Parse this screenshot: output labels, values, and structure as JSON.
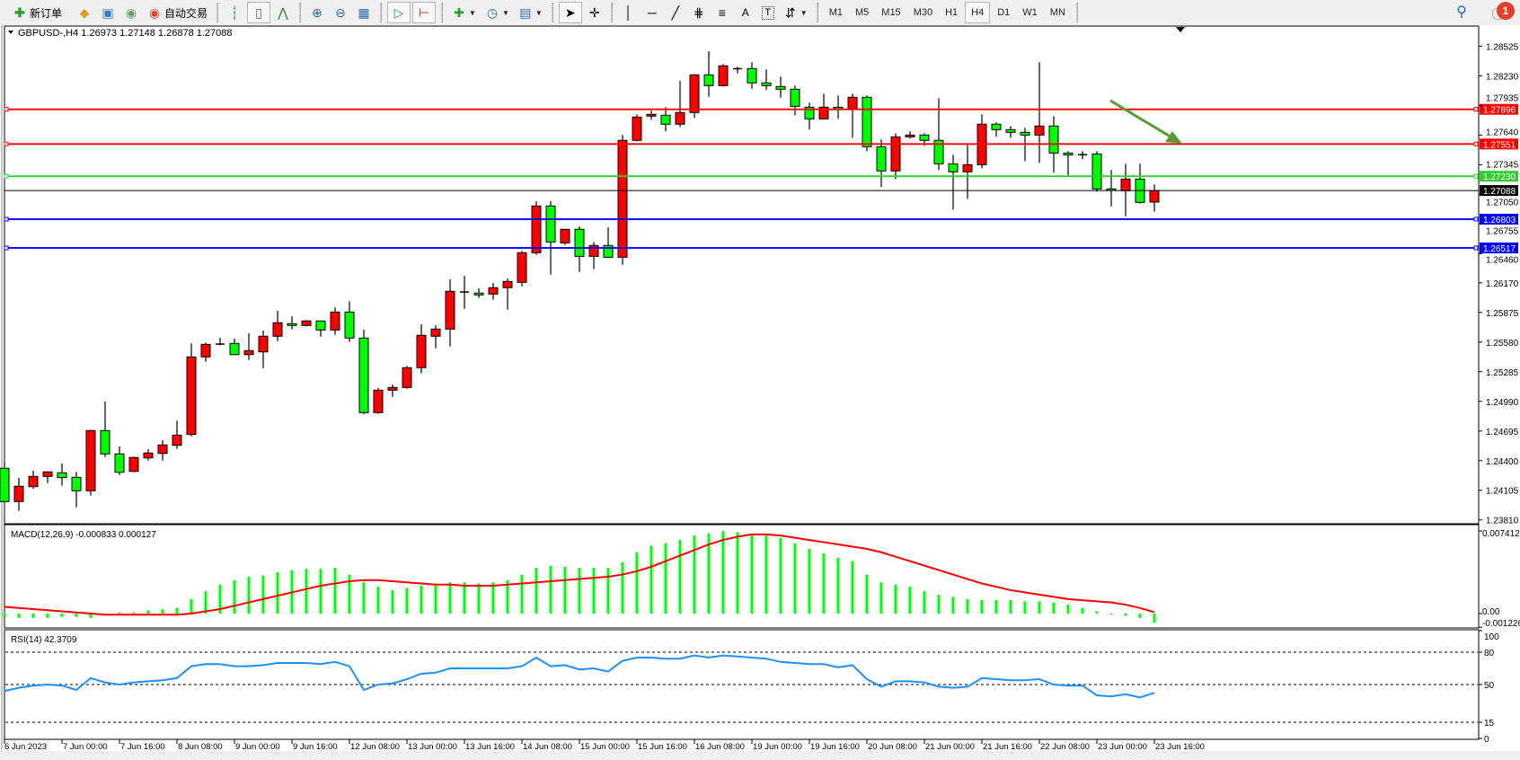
{
  "toolbar": {
    "new_order_label": "新订单",
    "auto_trading_label": "自动交易",
    "timeframes": [
      {
        "label": "M1",
        "active": false
      },
      {
        "label": "M5",
        "active": false
      },
      {
        "label": "M15",
        "active": false
      },
      {
        "label": "M30",
        "active": false
      },
      {
        "label": "H1",
        "active": false
      },
      {
        "label": "H4",
        "active": true
      },
      {
        "label": "D1",
        "active": false
      },
      {
        "label": "W1",
        "active": false
      },
      {
        "label": "MN",
        "active": false
      }
    ],
    "text_tool_label": "A",
    "notification_count": "1"
  },
  "chart": {
    "header": "GBPUSD-,H4  1.26973 1.27148 1.26878 1.27088",
    "colors": {
      "bull": "#ff0000",
      "bear": "#00ff00",
      "wick": "#000000",
      "arrow": "#5a9a32"
    },
    "price_ticks": [
      "1.28525",
      "1.28230",
      "1.27935",
      "1.27640",
      "1.27345",
      "1.27050",
      "1.26755",
      "1.26460",
      "1.26170",
      "1.25875",
      "1.25580",
      "1.25285",
      "1.24990",
      "1.24695",
      "1.24400",
      "1.24105",
      "1.23810"
    ],
    "levels": [
      {
        "price": 1.27896,
        "label": "1.27896",
        "color": "#ff0000"
      },
      {
        "price": 1.27551,
        "label": "1.27551",
        "color": "#ff0000"
      },
      {
        "price": 1.2723,
        "label": "1.27230",
        "color": "#32cd32"
      },
      {
        "price": 1.27088,
        "label": "1.27088",
        "color": "#000000",
        "bid": true
      },
      {
        "price": 1.26803,
        "label": "1.26803",
        "color": "#0000ff"
      },
      {
        "price": 1.26517,
        "label": "1.26517",
        "color": "#0000ff"
      }
    ],
    "time_labels": [
      "6 Jun 2023",
      "7 Jun 00:00",
      "7 Jun 16:00",
      "8 Jun 08:00",
      "9 Jun 00:00",
      "9 Jun 16:00",
      "12 Jun 08:00",
      "13 Jun 00:00",
      "13 Jun 16:00",
      "14 Jun 08:00",
      "15 Jun 00:00",
      "15 Jun 16:00",
      "16 Jun 08:00",
      "19 Jun 00:00",
      "19 Jun 16:00",
      "20 Jun 08:00",
      "21 Jun 00:00",
      "21 Jun 16:00",
      "22 Jun 08:00",
      "23 Jun 00:00",
      "23 Jun 16:00"
    ],
    "ohlc": [
      [
        1.24324,
        1.2438,
        1.23978,
        1.23993
      ],
      [
        1.23993,
        1.24228,
        1.239,
        1.24145
      ],
      [
        1.24141,
        1.24299,
        1.24118,
        1.24243
      ],
      [
        1.24243,
        1.24295,
        1.24177,
        1.24288
      ],
      [
        1.24279,
        1.24371,
        1.2415,
        1.24231
      ],
      [
        1.24234,
        1.24288,
        1.23936,
        1.241
      ],
      [
        1.241,
        1.24708,
        1.24052,
        1.24699
      ],
      [
        1.24699,
        1.24988,
        1.24436,
        1.24467
      ],
      [
        1.24467,
        1.24541,
        1.24257,
        1.24284
      ],
      [
        1.24293,
        1.2444,
        1.24284,
        1.24431
      ],
      [
        1.24427,
        1.24514,
        1.244,
        1.24476
      ],
      [
        1.24472,
        1.24603,
        1.244,
        1.24556
      ],
      [
        1.24552,
        1.24797,
        1.24517,
        1.24654
      ],
      [
        1.2466,
        1.25566,
        1.24642,
        1.25432
      ],
      [
        1.25432,
        1.25575,
        1.25384,
        1.25557
      ],
      [
        1.25556,
        1.25623,
        1.25547,
        1.2556
      ],
      [
        1.25566,
        1.25614,
        1.2545,
        1.25455
      ],
      [
        1.25455,
        1.25667,
        1.25402,
        1.25495
      ],
      [
        1.25482,
        1.25694,
        1.25321,
        1.25638
      ],
      [
        1.25638,
        1.25891,
        1.25589,
        1.25772
      ],
      [
        1.25763,
        1.25837,
        1.25706,
        1.25745
      ],
      [
        1.25745,
        1.25799,
        1.25736,
        1.2579
      ],
      [
        1.2579,
        1.25795,
        1.25634,
        1.257
      ],
      [
        1.257,
        1.25924,
        1.25652,
        1.25879
      ],
      [
        1.25879,
        1.25986,
        1.25581,
        1.2562
      ],
      [
        1.2562,
        1.25703,
        1.2486,
        1.24878
      ],
      [
        1.24878,
        1.25125,
        1.24865,
        1.25101
      ],
      [
        1.25101,
        1.25158,
        1.25035,
        1.25128
      ],
      [
        1.25128,
        1.25343,
        1.25116,
        1.25325
      ],
      [
        1.25325,
        1.25757,
        1.25268,
        1.25647
      ],
      [
        1.25638,
        1.25748,
        1.25518,
        1.25709
      ],
      [
        1.25709,
        1.26204,
        1.25536,
        1.26085
      ],
      [
        1.26078,
        1.26239,
        1.25911,
        1.26072
      ],
      [
        1.26067,
        1.26114,
        1.26019,
        1.26049
      ],
      [
        1.26058,
        1.26168,
        1.26001,
        1.26121
      ],
      [
        1.26121,
        1.26213,
        1.25902,
        1.26183
      ],
      [
        1.26174,
        1.26487,
        1.26135,
        1.26469
      ],
      [
        1.26469,
        1.26981,
        1.26448,
        1.26934
      ],
      [
        1.26934,
        1.26981,
        1.26251,
        1.26576
      ],
      [
        1.26567,
        1.26705,
        1.26546,
        1.26702
      ],
      [
        1.26702,
        1.26731,
        1.26278,
        1.26433
      ],
      [
        1.26433,
        1.26576,
        1.26305,
        1.26541
      ],
      [
        1.26541,
        1.26722,
        1.2642,
        1.26424
      ],
      [
        1.26424,
        1.2764,
        1.26349,
        1.27587
      ],
      [
        1.27587,
        1.27846,
        1.27578,
        1.27819
      ],
      [
        1.27828,
        1.27882,
        1.27792,
        1.27846
      ],
      [
        1.27837,
        1.27917,
        1.27676,
        1.27748
      ],
      [
        1.27748,
        1.28179,
        1.27721,
        1.27864
      ],
      [
        1.27864,
        1.28248,
        1.2781,
        1.28239
      ],
      [
        1.28239,
        1.28474,
        1.28021,
        1.28132
      ],
      [
        1.28132,
        1.28347,
        1.28123,
        1.28329
      ],
      [
        1.283,
        1.2832,
        1.28254,
        1.28297
      ],
      [
        1.28302,
        1.28364,
        1.28102,
        1.28159
      ],
      [
        1.28159,
        1.28293,
        1.28087,
        1.28132
      ],
      [
        1.28123,
        1.28222,
        1.28012,
        1.28096
      ],
      [
        1.28096,
        1.28132,
        1.27837,
        1.27926
      ],
      [
        1.27917,
        1.27962,
        1.27694,
        1.27801
      ],
      [
        1.27801,
        1.28052,
        1.27795,
        1.27917
      ],
      [
        1.27917,
        1.28034,
        1.27801,
        1.279
      ],
      [
        1.279,
        1.28052,
        1.27613,
        1.28016
      ],
      [
        1.28016,
        1.28034,
        1.27479,
        1.27524
      ],
      [
        1.27524,
        1.27596,
        1.27122,
        1.27283
      ],
      [
        1.27283,
        1.27658,
        1.27202,
        1.27622
      ],
      [
        1.27622,
        1.27676,
        1.27604,
        1.2764
      ],
      [
        1.2764,
        1.27658,
        1.27533,
        1.27587
      ],
      [
        1.27587,
        1.28007,
        1.27292,
        1.27354
      ],
      [
        1.27354,
        1.27444,
        1.26898,
        1.27274
      ],
      [
        1.27274,
        1.27542,
        1.27006,
        1.27345
      ],
      [
        1.27345,
        1.27846,
        1.2731,
        1.27748
      ],
      [
        1.27748,
        1.27766,
        1.27622,
        1.27694
      ],
      [
        1.27694,
        1.2773,
        1.27613,
        1.27667
      ],
      [
        1.27667,
        1.27712,
        1.27381,
        1.2764
      ],
      [
        1.2764,
        1.28364,
        1.27363,
        1.2773
      ],
      [
        1.2773,
        1.27828,
        1.27265,
        1.27461
      ],
      [
        1.27461,
        1.27479,
        1.27238,
        1.27443
      ],
      [
        1.27445,
        1.27479,
        1.27399,
        1.27443
      ],
      [
        1.27452,
        1.27479,
        1.27077,
        1.27104
      ],
      [
        1.27104,
        1.27292,
        1.2693,
        1.27089
      ],
      [
        1.27086,
        1.27354,
        1.26832,
        1.27202
      ],
      [
        1.27202,
        1.27354,
        1.26957,
        1.2697
      ],
      [
        1.26973,
        1.27148,
        1.26878,
        1.27088
      ]
    ]
  },
  "macd": {
    "label": "MACD(12,26,9) -0.000833 0.000127",
    "ticks": [
      "0.007412",
      "0.00",
      "-0.001226"
    ],
    "hist_color": "#00ff00",
    "signal_color": "#ff0000",
    "main": [
      -0.0003,
      -0.0004,
      -0.0004,
      -0.0004,
      -0.0003,
      -0.0003,
      -0.0004,
      -0.0001,
      0.0001,
      0.0001,
      0.0003,
      0.0004,
      0.0005,
      0.0013,
      0.002,
      0.0026,
      0.003,
      0.0033,
      0.0034,
      0.0037,
      0.0039,
      0.004,
      0.004,
      0.0041,
      0.0035,
      0.0028,
      0.0024,
      0.0021,
      0.0023,
      0.0025,
      0.0025,
      0.0028,
      0.0028,
      0.0027,
      0.0028,
      0.003,
      0.0035,
      0.0041,
      0.0043,
      0.0042,
      0.0041,
      0.0041,
      0.0041,
      0.0046,
      0.0055,
      0.0061,
      0.0063,
      0.0066,
      0.007,
      0.0072,
      0.0074,
      0.0073,
      0.0071,
      0.007,
      0.0068,
      0.0063,
      0.0058,
      0.0054,
      0.005,
      0.0047,
      0.0035,
      0.0028,
      0.0026,
      0.0024,
      0.002,
      0.0017,
      0.0015,
      0.0013,
      0.0012,
      0.0012,
      0.0012,
      0.0011,
      0.0011,
      0.001,
      0.0008,
      0.0005,
      0.0002,
      0.0,
      -0.0002,
      -0.0004,
      -0.000833
    ],
    "signal": [
      0.0006,
      0.0005,
      0.0004,
      0.0003,
      0.0002,
      0.0001,
      0.0,
      -0.0001,
      -0.0001,
      -0.0001,
      -0.0001,
      -0.0001,
      -0.0001,
      0.0,
      0.0002,
      0.0004,
      0.0007,
      0.001,
      0.0013,
      0.0016,
      0.0019,
      0.0022,
      0.0025,
      0.0027,
      0.0029,
      0.003,
      0.003,
      0.0029,
      0.0028,
      0.0027,
      0.0026,
      0.0026,
      0.0025,
      0.0025,
      0.0025,
      0.0026,
      0.0027,
      0.0028,
      0.0029,
      0.003,
      0.0031,
      0.0032,
      0.0033,
      0.0035,
      0.0038,
      0.0042,
      0.0047,
      0.0052,
      0.0057,
      0.0062,
      0.0066,
      0.0069,
      0.0071,
      0.0071,
      0.007,
      0.0068,
      0.0066,
      0.0064,
      0.0062,
      0.006,
      0.0058,
      0.0055,
      0.0051,
      0.0047,
      0.0043,
      0.0039,
      0.0035,
      0.0031,
      0.0027,
      0.0024,
      0.0021,
      0.0019,
      0.0017,
      0.0015,
      0.0013,
      0.0012,
      0.0011,
      0.001,
      0.0008,
      0.0005,
      0.000127
    ]
  },
  "rsi": {
    "label": "RSI(14) 42.3709",
    "ticks": [
      "100",
      "80",
      "50",
      "15",
      "0"
    ],
    "levels": [
      80,
      50,
      15
    ],
    "color": "#1e90ff",
    "values": [
      44,
      47,
      49,
      50,
      49,
      45,
      56,
      52,
      50,
      52,
      53,
      54,
      56,
      67,
      69,
      69,
      67,
      67,
      68,
      70,
      70,
      70,
      69,
      71,
      67,
      45,
      50,
      51,
      55,
      60,
      61,
      65,
      65,
      65,
      65,
      65,
      67,
      75,
      67,
      68,
      64,
      65,
      62,
      72,
      75,
      75,
      74,
      74,
      77,
      75,
      77,
      76,
      75,
      74,
      71,
      70,
      69,
      69,
      66,
      68,
      55,
      48,
      53,
      53,
      52,
      48,
      47,
      48,
      56,
      55,
      54,
      54,
      55,
      50,
      49,
      49,
      40,
      39,
      41,
      38,
      42.3709
    ]
  }
}
